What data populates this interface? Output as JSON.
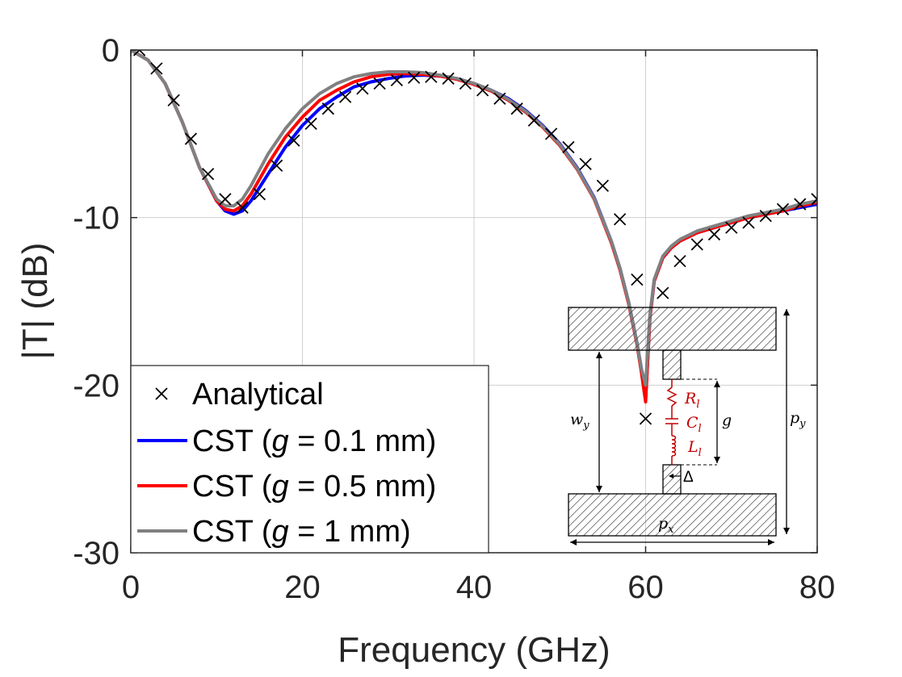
{
  "chart_data": {
    "type": "line",
    "xlabel": "Frequency (GHz)",
    "ylabel": "|T| (dB)",
    "xlim": [
      0,
      80
    ],
    "ylim": [
      -30,
      0
    ],
    "xticks": [
      0,
      20,
      40,
      60,
      80
    ],
    "yticks": [
      0,
      -10,
      -20,
      -30
    ],
    "xtick_labels": [
      "0",
      "20",
      "40",
      "60",
      "80"
    ],
    "ytick_labels": [
      "0",
      "-10",
      "-20",
      "-30"
    ],
    "grid": true,
    "legend_position": "bottom-left",
    "series": [
      {
        "name": "Analytical",
        "style": "markers",
        "marker": "x",
        "color": "#000000",
        "x": [
          1,
          3,
          5,
          7,
          9,
          11,
          13,
          15,
          17,
          19,
          21,
          23,
          25,
          27,
          29,
          31,
          33,
          35,
          37,
          39,
          41,
          43,
          45,
          47,
          49,
          51,
          53,
          55,
          57,
          59,
          60,
          62,
          64,
          66,
          68,
          70,
          72,
          74,
          76,
          78,
          80
        ],
        "y": [
          0,
          -1.1,
          -3.0,
          -5.3,
          -7.4,
          -8.9,
          -9.4,
          -8.6,
          -6.9,
          -5.4,
          -4.4,
          -3.5,
          -2.8,
          -2.3,
          -2.0,
          -1.8,
          -1.65,
          -1.6,
          -1.7,
          -2.0,
          -2.4,
          -2.9,
          -3.5,
          -4.2,
          -5.0,
          -5.8,
          -6.8,
          -8.1,
          -10.1,
          -13.7,
          -22.0,
          -14.5,
          -12.6,
          -11.6,
          -11.0,
          -10.6,
          -10.3,
          -9.9,
          -9.5,
          -9.2,
          -8.9
        ]
      },
      {
        "name": "CST (g = 0.1 mm)",
        "name_prefix": "CST (",
        "name_var": "g",
        "name_suffix": " = 0.1 mm)",
        "style": "line",
        "color": "#0000ff",
        "x": [
          0,
          2,
          4,
          6,
          8,
          10,
          11,
          12,
          13,
          14,
          16,
          18,
          20,
          22,
          24,
          26,
          28,
          30,
          32,
          34,
          36,
          38,
          40,
          42,
          44,
          46,
          48,
          50,
          52,
          54,
          56,
          57,
          58,
          59,
          59.5,
          60,
          60.5,
          61,
          62,
          63,
          64,
          66,
          68,
          70,
          72,
          74,
          76,
          78,
          80
        ],
        "y": [
          0,
          -0.6,
          -2.0,
          -4.3,
          -7.0,
          -9.0,
          -9.6,
          -9.8,
          -9.6,
          -9.0,
          -7.4,
          -5.8,
          -4.5,
          -3.5,
          -2.8,
          -2.2,
          -1.9,
          -1.7,
          -1.55,
          -1.5,
          -1.55,
          -1.7,
          -2.0,
          -2.4,
          -2.9,
          -3.6,
          -4.5,
          -5.6,
          -7.0,
          -8.8,
          -11.4,
          -13.0,
          -15.0,
          -17.5,
          -19.0,
          -20.8,
          -16.0,
          -13.8,
          -12.4,
          -11.8,
          -11.4,
          -10.9,
          -10.6,
          -10.3,
          -10.0,
          -9.8,
          -9.6,
          -9.4,
          -9.2
        ]
      },
      {
        "name": "CST (g = 0.5 mm)",
        "name_prefix": "CST (",
        "name_var": "g",
        "name_suffix": " = 0.5 mm)",
        "style": "line",
        "color": "#ff0000",
        "x": [
          0,
          2,
          4,
          6,
          8,
          10,
          11,
          12,
          13,
          14,
          16,
          18,
          20,
          22,
          24,
          26,
          28,
          30,
          32,
          34,
          36,
          38,
          40,
          42,
          44,
          46,
          48,
          50,
          52,
          54,
          56,
          57,
          58,
          59,
          59.5,
          60,
          60.5,
          61,
          62,
          63,
          64,
          66,
          68,
          70,
          72,
          74,
          76,
          78,
          80
        ],
        "y": [
          0,
          -0.6,
          -2.0,
          -4.3,
          -7.0,
          -9.0,
          -9.5,
          -9.6,
          -9.3,
          -8.6,
          -6.8,
          -5.2,
          -4.0,
          -3.0,
          -2.4,
          -1.9,
          -1.6,
          -1.45,
          -1.4,
          -1.45,
          -1.55,
          -1.75,
          -2.05,
          -2.45,
          -3.0,
          -3.7,
          -4.6,
          -5.7,
          -7.1,
          -8.9,
          -11.5,
          -13.1,
          -15.1,
          -17.6,
          -19.2,
          -21.0,
          -16.0,
          -13.8,
          -12.4,
          -11.8,
          -11.4,
          -10.9,
          -10.6,
          -10.3,
          -10.0,
          -9.8,
          -9.6,
          -9.3,
          -9.1
        ]
      },
      {
        "name": "CST (g = 1 mm)",
        "name_prefix": "CST (",
        "name_var": "g",
        "name_suffix": " = 1 mm)",
        "style": "line",
        "color": "#808080",
        "x": [
          0,
          2,
          4,
          6,
          8,
          10,
          11,
          12,
          13,
          14,
          16,
          18,
          20,
          22,
          24,
          26,
          28,
          30,
          32,
          34,
          36,
          38,
          40,
          42,
          44,
          46,
          48,
          50,
          52,
          54,
          56,
          57,
          58,
          59,
          59.5,
          60,
          60.5,
          61,
          62,
          63,
          64,
          66,
          68,
          70,
          72,
          74,
          76,
          78,
          80
        ],
        "y": [
          0,
          -0.6,
          -2.0,
          -4.3,
          -7.0,
          -8.9,
          -9.3,
          -9.3,
          -8.9,
          -8.1,
          -6.2,
          -4.7,
          -3.5,
          -2.6,
          -2.0,
          -1.6,
          -1.4,
          -1.3,
          -1.3,
          -1.35,
          -1.5,
          -1.7,
          -2.0,
          -2.4,
          -2.95,
          -3.65,
          -4.55,
          -5.65,
          -7.05,
          -8.85,
          -11.4,
          -13.0,
          -15.0,
          -17.5,
          -19.0,
          -20.0,
          -15.8,
          -13.7,
          -12.3,
          -11.7,
          -11.3,
          -10.8,
          -10.5,
          -10.2,
          -9.9,
          -9.7,
          -9.5,
          -9.2,
          -9.0
        ]
      }
    ],
    "inset": {
      "labels": {
        "R": "R",
        "R_sub": "l",
        "C": "C",
        "C_sub": "l",
        "L": "L",
        "L_sub": "l",
        "g": "g",
        "wy": "w",
        "wy_sub": "y",
        "py": "p",
        "py_sub": "y",
        "px": "p",
        "px_sub": "x",
        "delta": "Δ"
      },
      "component_color": "#c00000"
    }
  }
}
